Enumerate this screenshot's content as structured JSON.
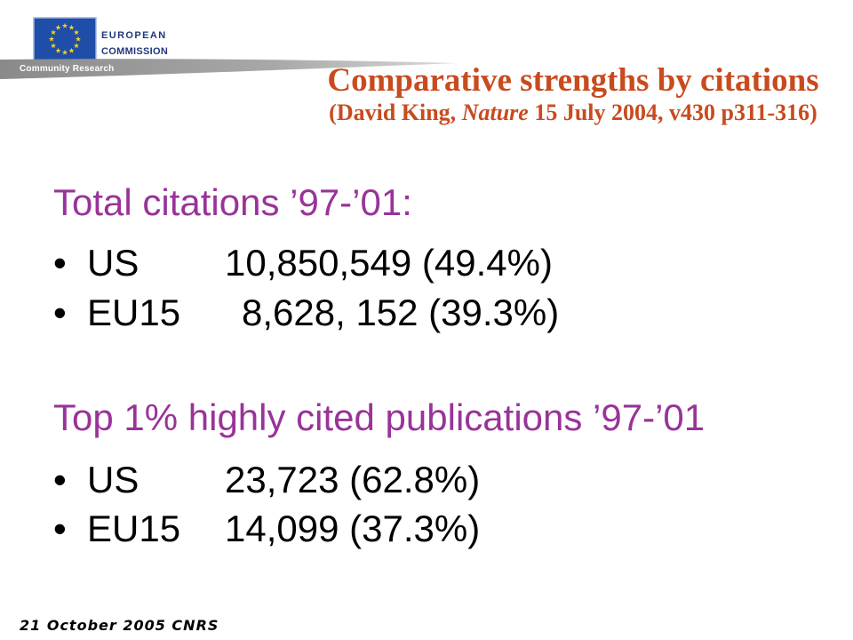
{
  "header": {
    "logo": {
      "icon": "eu-flag-icon",
      "org_line1": "EUROPEAN",
      "org_line2": "COMMISSION",
      "tagline": "Community Research"
    },
    "title": "Comparative strengths by citations",
    "subtitle": {
      "prefix": "(David King, ",
      "journal": "Nature",
      "suffix": " 15 July 2004, v430 p311-316)"
    }
  },
  "sections": [
    {
      "heading": "Total citations ’97-’01:",
      "items": [
        {
          "label": "US",
          "value": "10,850,549 (49.4%)"
        },
        {
          "label": "EU15",
          "value": "8,628, 152 (39.3%)"
        }
      ]
    },
    {
      "heading": "Top 1% highly cited publications ’97-’01",
      "items": [
        {
          "label": "US",
          "value": "23,723 (62.8%)"
        },
        {
          "label": "EU15",
          "value": "14,099 (37.3%)"
        }
      ]
    }
  ],
  "footer": {
    "text": "21 October 2005 CNRS"
  },
  "colors": {
    "title": "#C84B1E",
    "heading": "#993399",
    "body": "#000000",
    "flag": "#1F4EA8",
    "stars": "#FFD21F",
    "logo_text": "#22387A"
  }
}
